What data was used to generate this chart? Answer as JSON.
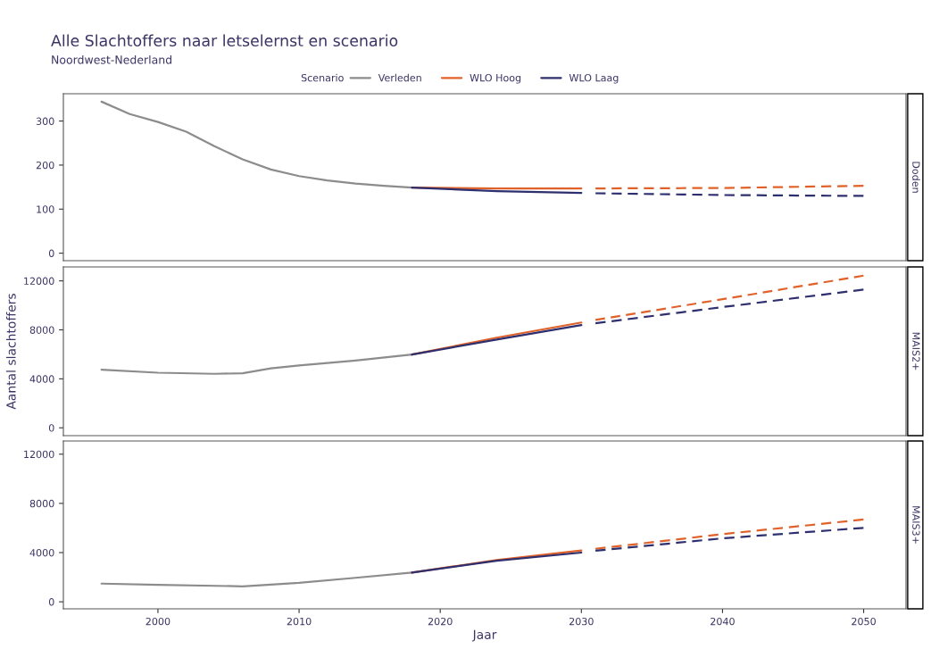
{
  "chart_data": [
    {
      "type": "line",
      "title": "Alle Slachtoffers naar letselernst en scenario",
      "subtitle": "Noordwest-Nederland",
      "legend_title": "Scenario",
      "legend": "top",
      "annotations": [
        "Doden"
      ],
      "xlim": [
        1993.3,
        2053.0
      ],
      "xticks": [
        2000,
        2010,
        2020,
        2030,
        2040,
        2050
      ],
      "ylim": [
        -17,
        362
      ],
      "yticks": [
        0,
        100,
        200,
        300
      ],
      "tick_labels": "y",
      "grid": false,
      "marker": "none",
      "series": [
        {
          "name": "Verleden",
          "color": "#8c8c8c",
          "line_style": "solid",
          "x": [
            1996,
            1998,
            2000,
            2002,
            2004,
            2006,
            2008,
            2010,
            2012,
            2014,
            2016,
            2018
          ],
          "values": [
            344,
            316,
            298,
            276,
            243,
            213,
            190,
            175,
            165,
            158,
            153,
            149
          ]
        },
        {
          "name": "WLO Hoog",
          "color": "#e0622a",
          "line_style": "solid",
          "x": [
            2018,
            2024,
            2030
          ],
          "values": [
            149,
            147,
            147
          ]
        },
        {
          "name": "WLO Laag",
          "color": "#2e2f6e",
          "line_style": "solid",
          "x": [
            2018,
            2024,
            2030
          ],
          "values": [
            149,
            141,
            137
          ]
        },
        {
          "color": "#e0622a",
          "line_style": "dashed",
          "x": [
            2031,
            2040,
            2050
          ],
          "values": [
            147,
            148,
            153
          ]
        },
        {
          "color": "#2e2f6e",
          "line_style": "dashed",
          "x": [
            2031,
            2040,
            2050
          ],
          "values": [
            136,
            132,
            130
          ]
        }
      ]
    },
    {
      "type": "line",
      "ylabel": "Aantal slachtoffers",
      "annotations": [
        "MAIS2+"
      ],
      "xlim": [
        1993.3,
        2053.0
      ],
      "xticks": [
        2000,
        2010,
        2020,
        2030,
        2040,
        2050
      ],
      "ylim": [
        -640,
        13140
      ],
      "yticks": [
        0,
        4000,
        8000,
        12000
      ],
      "tick_labels": "y",
      "grid": false,
      "marker": "none",
      "series": [
        {
          "color": "#8c8c8c",
          "line_style": "solid",
          "x": [
            1996,
            2000,
            2004,
            2006,
            2008,
            2010,
            2014,
            2018
          ],
          "values": [
            4750,
            4500,
            4410,
            4450,
            4850,
            5100,
            5500,
            5980
          ]
        },
        {
          "color": "#e0622a",
          "line_style": "solid",
          "x": [
            2018,
            2024,
            2030
          ],
          "values": [
            5980,
            7360,
            8600
          ]
        },
        {
          "color": "#2e2f6e",
          "line_style": "solid",
          "x": [
            2018,
            2024,
            2030
          ],
          "values": [
            5980,
            7210,
            8390
          ]
        },
        {
          "color": "#e0622a",
          "line_style": "dashed",
          "x": [
            2031,
            2040,
            2050
          ],
          "values": [
            8810,
            10500,
            12430
          ]
        },
        {
          "color": "#2e2f6e",
          "line_style": "dashed",
          "x": [
            2031,
            2040,
            2050
          ],
          "values": [
            8540,
            9860,
            11290
          ]
        }
      ]
    },
    {
      "type": "line",
      "xlabel": "Jaar",
      "annotations": [
        "MAIS3+"
      ],
      "xlim": [
        1993.3,
        2053.0
      ],
      "xticks": [
        2000,
        2010,
        2020,
        2030,
        2040,
        2050
      ],
      "ylim": [
        -570,
        13070
      ],
      "yticks": [
        0,
        4000,
        8000,
        12000
      ],
      "grid": false,
      "marker": "none",
      "series": [
        {
          "color": "#8c8c8c",
          "line_style": "solid",
          "x": [
            1996,
            2000,
            2006,
            2010,
            2014,
            2018
          ],
          "values": [
            1480,
            1380,
            1260,
            1550,
            1950,
            2380
          ]
        },
        {
          "color": "#e0622a",
          "line_style": "solid",
          "x": [
            2018,
            2024,
            2030
          ],
          "values": [
            2380,
            3390,
            4180
          ]
        },
        {
          "color": "#2e2f6e",
          "line_style": "solid",
          "x": [
            2018,
            2024,
            2030
          ],
          "values": [
            2380,
            3340,
            4000
          ]
        },
        {
          "color": "#e0622a",
          "line_style": "dashed",
          "x": [
            2031,
            2040,
            2050
          ],
          "values": [
            4310,
            5500,
            6690
          ]
        },
        {
          "color": "#2e2f6e",
          "line_style": "dashed",
          "x": [
            2031,
            2040,
            2050
          ],
          "values": [
            4150,
            5160,
            6010
          ]
        }
      ]
    }
  ]
}
